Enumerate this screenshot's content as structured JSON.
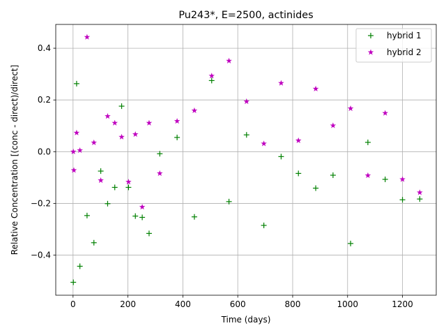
{
  "chart_data": {
    "type": "scatter",
    "title": "Pu243*, E=2500, actinides",
    "xlabel": "Time (days)",
    "ylabel": "Relative Concentration [(conc - direct)/direct]",
    "xlim": [
      -63,
      1323
    ],
    "ylim": [
      -0.555,
      0.492
    ],
    "x_ticks": [
      0,
      200,
      400,
      600,
      800,
      1000,
      1200
    ],
    "y_ticks": [
      -0.4,
      -0.2,
      0.0,
      0.2,
      0.4
    ],
    "x_tick_labels": [
      "0",
      "200",
      "400",
      "600",
      "800",
      "1000",
      "1200"
    ],
    "y_tick_labels": [
      "−0.4",
      "−0.2",
      "0.0",
      "0.2",
      "0.4"
    ],
    "grid": true,
    "legend_position": "top-right",
    "series": [
      {
        "name": "hybrid 1",
        "marker": "plus",
        "color": "#008000",
        "x": [
          1,
          13,
          25,
          51,
          76,
          101,
          126,
          152,
          177,
          202,
          227,
          252,
          277,
          316,
          379,
          442,
          505,
          568,
          632,
          695,
          758,
          821,
          884,
          947,
          1011,
          1074,
          1137,
          1200,
          1263
        ],
        "y": [
          -0.505,
          0.263,
          -0.443,
          -0.247,
          -0.352,
          -0.075,
          -0.201,
          -0.138,
          0.176,
          -0.138,
          -0.249,
          -0.254,
          -0.316,
          -0.008,
          0.055,
          -0.252,
          0.275,
          -0.193,
          0.065,
          -0.285,
          -0.019,
          -0.084,
          -0.141,
          -0.091,
          -0.355,
          0.036,
          -0.107,
          -0.186,
          -0.183
        ]
      },
      {
        "name": "hybrid 2",
        "marker": "star",
        "color": "#bf00bf",
        "x": [
          1,
          3,
          13,
          25,
          51,
          76,
          101,
          126,
          152,
          177,
          202,
          227,
          252,
          277,
          316,
          379,
          442,
          505,
          568,
          632,
          695,
          758,
          821,
          884,
          947,
          1011,
          1074,
          1137,
          1200,
          1263
        ],
        "y": [
          0.0,
          -0.072,
          0.073,
          0.005,
          0.443,
          0.035,
          -0.111,
          0.137,
          0.111,
          0.057,
          -0.117,
          0.067,
          -0.214,
          0.111,
          -0.084,
          0.118,
          0.159,
          0.293,
          0.351,
          0.194,
          0.031,
          0.265,
          0.043,
          0.243,
          0.101,
          0.167,
          -0.092,
          0.149,
          -0.107,
          -0.158
        ]
      }
    ]
  }
}
